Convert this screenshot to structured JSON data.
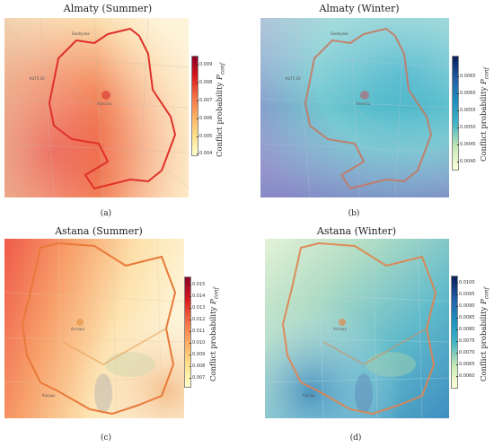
{
  "panels": [
    {
      "id": "a",
      "title": "Almaty (Summer)",
      "label": "(a)",
      "colorbar_label": "Conflict probability",
      "colorbar_symbol": "P",
      "colorbar_sub": "conf",
      "colormap": "YlOrRd",
      "ticks": [
        "0.009",
        "0.008",
        "0.007",
        "0.006",
        "0.005",
        "0.004"
      ],
      "place_labels": [
        "Алматы",
        "КаТЗ 03",
        "Бекбулак"
      ]
    },
    {
      "id": "b",
      "title": "Almaty (Winter)",
      "label": "(b)",
      "colorbar_label": "Conflict probability",
      "colorbar_symbol": "P",
      "colorbar_sub": "conf",
      "colormap": "YlGnBu",
      "ticks": [
        "0.0065",
        "0.0060",
        "0.0055",
        "0.0050",
        "0.0045",
        "0.0040"
      ],
      "place_labels": [
        "Алматы",
        "КаТЗ 03",
        "Бекбулак"
      ]
    },
    {
      "id": "c",
      "title": "Astana (Summer)",
      "label": "(c)",
      "colorbar_label": "Conflict probability",
      "colorbar_symbol": "P",
      "colorbar_sub": "conf",
      "colormap": "YlOrRd",
      "ticks": [
        "0.015",
        "0.014",
        "0.013",
        "0.012",
        "0.011",
        "0.010",
        "0.009",
        "0.008",
        "0.007"
      ],
      "place_labels": [
        "Астана",
        "Косшы"
      ]
    },
    {
      "id": "d",
      "title": "Astana (Winter)",
      "label": "(d)",
      "colorbar_label": "Conflict probability",
      "colorbar_symbol": "P",
      "colorbar_sub": "conf",
      "colormap": "YlGnBu",
      "ticks": [
        "0.0100",
        "0.0095",
        "0.0090",
        "0.0085",
        "0.0080",
        "0.0075",
        "0.0070",
        "0.0065",
        "0.0060"
      ],
      "place_labels": [
        "Астана",
        "Косшы"
      ]
    }
  ]
}
